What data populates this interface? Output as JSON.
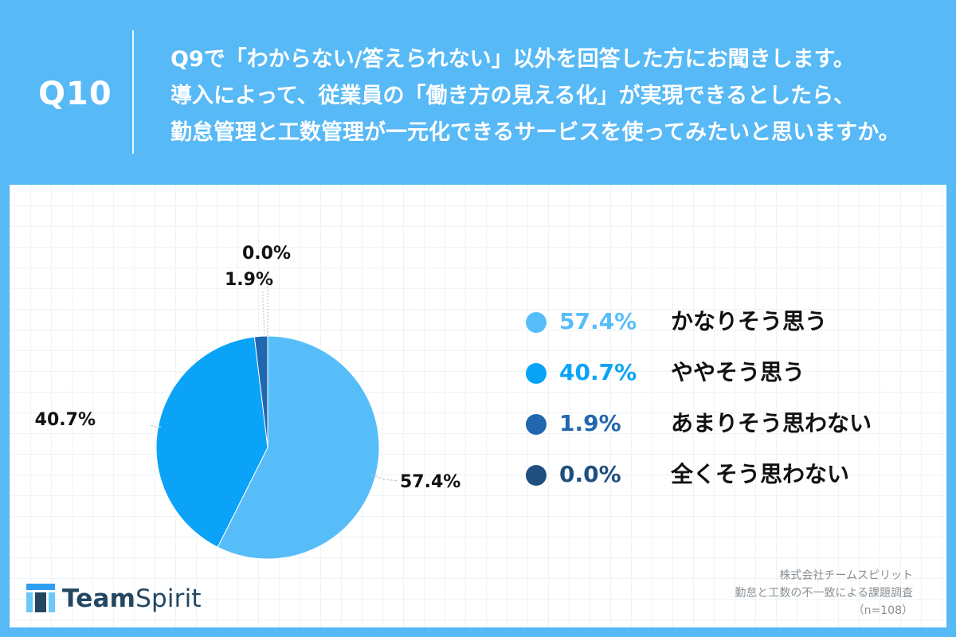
{
  "header": {
    "question_number": "Q10",
    "lines": [
      "Q9で「わからない/答えられない」以外を回答した方にお聞きします。",
      "導入によって、従業員の「働き方の見える化」が実現できるとしたら、",
      "勤怠管理と工数管理が一元化できるサービスを使ってみたいと思いますか。"
    ]
  },
  "chart_data": {
    "type": "pie",
    "values": [
      57.4,
      40.7,
      1.9,
      0.0
    ],
    "labels": [
      "57.4%",
      "40.7%",
      "1.9%",
      "0.0%"
    ],
    "categories": [
      "かなりそう思う",
      "ややそう思う",
      "あまりそう思わない",
      "全くそう思わない"
    ],
    "colors": [
      "#57bdf9",
      "#0aa3f7",
      "#2167af",
      "#1f4f7f"
    ]
  },
  "legend": [
    {
      "value": "57.4%",
      "label": "かなりそう思う",
      "color": "#57bdf9"
    },
    {
      "value": "40.7%",
      "label": "ややそう思う",
      "color": "#0aa3f7"
    },
    {
      "value": "1.9%",
      "label": "あまりそう思わない",
      "color": "#2167af"
    },
    {
      "value": "0.0%",
      "label": "全くそう思わない",
      "color": "#1f4f7f"
    }
  ],
  "brand": {
    "team": "Team",
    "spirit": "Spirit"
  },
  "source": {
    "company": "株式会社チームスピリット",
    "survey": "勤怠と工数の不一致による課題調査",
    "sample": "（n=108）"
  }
}
